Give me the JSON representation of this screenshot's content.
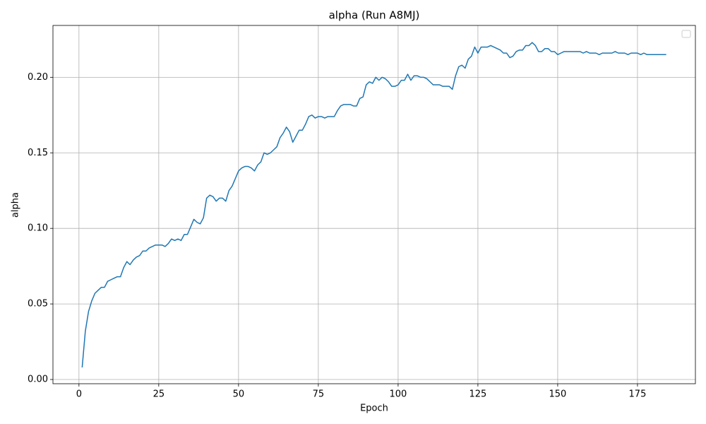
{
  "chart_data": {
    "type": "line",
    "title": "alpha (Run A8MJ)",
    "x_label": "Epoch",
    "y_label": "alpha",
    "color": "#1f77b4",
    "grid": true,
    "xlim": [
      -8.15,
      193.15
    ],
    "ylim": [
      -0.0028,
      0.2343
    ],
    "xticks": [
      0,
      25,
      50,
      75,
      100,
      125,
      150,
      175
    ],
    "yticks": [
      {
        "value": 0,
        "label": "0.00"
      },
      0.05,
      {
        "value": 0.1,
        "label": "0.10"
      },
      0.15,
      {
        "value": 0.2,
        "label": "0.20"
      }
    ],
    "x": [
      1,
      2,
      3,
      4,
      5,
      6,
      7,
      8,
      9,
      10,
      11,
      12,
      13,
      14,
      15,
      16,
      17,
      18,
      19,
      20,
      21,
      22,
      23,
      24,
      25,
      26,
      27,
      28,
      29,
      30,
      31,
      32,
      33,
      34,
      35,
      36,
      37,
      38,
      39,
      40,
      41,
      42,
      43,
      44,
      45,
      46,
      47,
      48,
      49,
      50,
      51,
      52,
      53,
      54,
      55,
      56,
      57,
      58,
      59,
      60,
      61,
      62,
      63,
      64,
      65,
      66,
      67,
      68,
      69,
      70,
      71,
      72,
      73,
      74,
      75,
      76,
      77,
      78,
      79,
      80,
      81,
      82,
      83,
      84,
      85,
      86,
      87,
      88,
      89,
      90,
      91,
      92,
      93,
      94,
      95,
      96,
      97,
      98,
      99,
      100,
      101,
      102,
      103,
      104,
      105,
      106,
      107,
      108,
      109,
      110,
      111,
      112,
      113,
      114,
      115,
      116,
      117,
      118,
      119,
      120,
      121,
      122,
      123,
      124,
      125,
      126,
      127,
      128,
      129,
      130,
      131,
      132,
      133,
      134,
      135,
      136,
      137,
      138,
      139,
      140,
      141,
      142,
      143,
      144,
      145,
      146,
      147,
      148,
      149,
      150,
      151,
      152,
      153,
      154,
      155,
      156,
      157,
      158,
      159,
      160,
      161,
      162,
      163,
      164,
      165,
      166,
      167,
      168,
      169,
      170,
      171,
      172,
      173,
      174,
      175,
      176,
      177,
      178,
      179,
      180,
      181,
      182,
      183,
      184
    ],
    "values": [
      0.008,
      0.032,
      0.045,
      0.052,
      0.057,
      0.059,
      0.061,
      0.061,
      0.065,
      0.066,
      0.067,
      0.068,
      0.068,
      0.074,
      0.078,
      0.076,
      0.079,
      0.081,
      0.082,
      0.085,
      0.085,
      0.087,
      0.088,
      0.089,
      0.089,
      0.089,
      0.088,
      0.09,
      0.093,
      0.092,
      0.093,
      0.092,
      0.096,
      0.096,
      0.101,
      0.106,
      0.104,
      0.103,
      0.107,
      0.12,
      0.122,
      0.121,
      0.118,
      0.12,
      0.12,
      0.118,
      0.125,
      0.128,
      0.133,
      0.138,
      0.14,
      0.141,
      0.141,
      0.14,
      0.138,
      0.142,
      0.144,
      0.15,
      0.149,
      0.15,
      0.152,
      0.154,
      0.16,
      0.163,
      0.167,
      0.164,
      0.157,
      0.161,
      0.165,
      0.165,
      0.169,
      0.174,
      0.175,
      0.173,
      0.174,
      0.174,
      0.173,
      0.174,
      0.174,
      0.174,
      0.178,
      0.181,
      0.182,
      0.182,
      0.182,
      0.181,
      0.181,
      0.186,
      0.187,
      0.195,
      0.197,
      0.196,
      0.2,
      0.198,
      0.2,
      0.199,
      0.197,
      0.194,
      0.194,
      0.195,
      0.198,
      0.198,
      0.202,
      0.198,
      0.201,
      0.201,
      0.2,
      0.2,
      0.199,
      0.197,
      0.195,
      0.195,
      0.195,
      0.194,
      0.194,
      0.194,
      0.192,
      0.201,
      0.207,
      0.208,
      0.206,
      0.212,
      0.214,
      0.22,
      0.216,
      0.22,
      0.22,
      0.22,
      0.221,
      0.22,
      0.219,
      0.218,
      0.216,
      0.216,
      0.213,
      0.214,
      0.217,
      0.218,
      0.218,
      0.221,
      0.221,
      0.223,
      0.221,
      0.217,
      0.217,
      0.219,
      0.219,
      0.217,
      0.217,
      0.215,
      0.216,
      0.217,
      0.217,
      0.217,
      0.217,
      0.217,
      0.217,
      0.216,
      0.217,
      0.216,
      0.216,
      0.216,
      0.215,
      0.216,
      0.216,
      0.216,
      0.216,
      0.217,
      0.216,
      0.216,
      0.216,
      0.215,
      0.216,
      0.216,
      0.216,
      0.215,
      0.216,
      0.215,
      0.215,
      0.215,
      0.215,
      0.215,
      0.215,
      0.215
    ]
  }
}
